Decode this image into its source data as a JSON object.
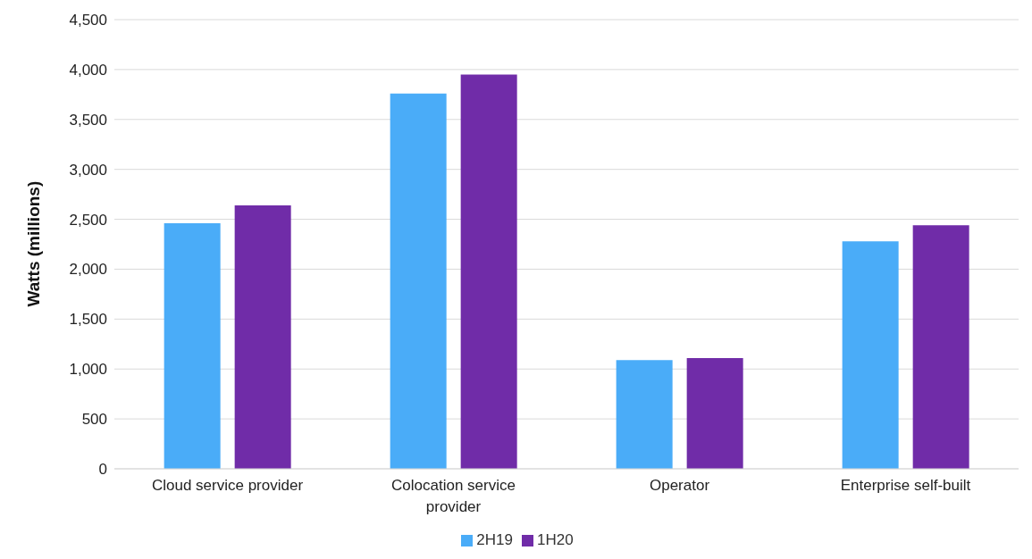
{
  "chart_data": {
    "type": "bar",
    "ylabel": "Watts (millions)",
    "categories": [
      "Cloud service provider",
      "Colocation service provider",
      "Operator",
      "Enterprise self-built"
    ],
    "series": [
      {
        "name": "2H19",
        "color": "#4aacf8",
        "values": [
          2460,
          3760,
          1090,
          2280
        ]
      },
      {
        "name": "1H20",
        "color": "#702ca8",
        "values": [
          2640,
          3950,
          1110,
          2440
        ]
      }
    ],
    "ylim": [
      0,
      4500
    ],
    "yticks": [
      0,
      500,
      {
        "value": 1000,
        "label": "1,000"
      },
      {
        "value": 1500,
        "label": "1,500"
      },
      {
        "value": 2000,
        "label": "2,000"
      },
      {
        "value": 2500,
        "label": "2,500"
      },
      {
        "value": 3000,
        "label": "3,000"
      },
      {
        "value": 3500,
        "label": "3,500"
      },
      {
        "value": 4000,
        "label": "4,000"
      },
      {
        "value": 4500,
        "label": "4,500"
      }
    ],
    "grid": "y",
    "legend": "bottom"
  }
}
